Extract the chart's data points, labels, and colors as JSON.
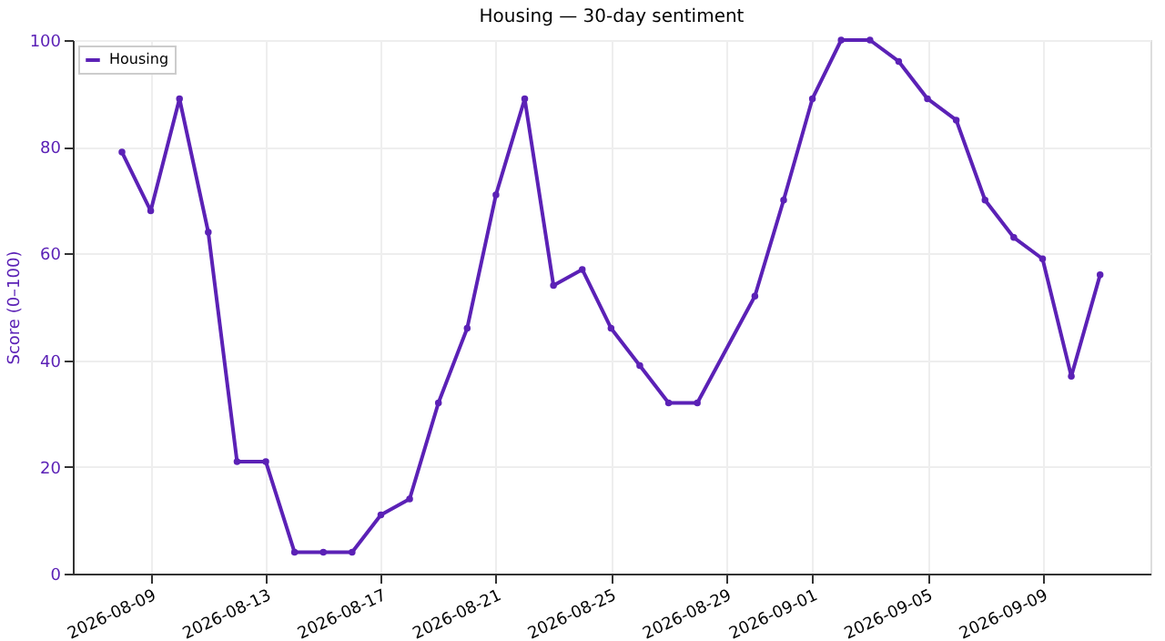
{
  "chart_data": {
    "type": "line",
    "title": "Housing — 30-day sentiment",
    "ylabel": "Score (0–100)",
    "x": [
      "2026-08-08",
      "2026-08-09",
      "2026-08-10",
      "2026-08-11",
      "2026-08-12",
      "2026-08-13",
      "2026-08-14",
      "2026-08-15",
      "2026-08-16",
      "2026-08-17",
      "2026-08-18",
      "2026-08-19",
      "2026-08-20",
      "2026-08-21",
      "2026-08-22",
      "2026-08-23",
      "2026-08-24",
      "2026-08-25",
      "2026-08-26",
      "2026-08-27",
      "2026-08-28",
      "2026-08-30",
      "2026-08-31",
      "2026-09-01",
      "2026-09-02",
      "2026-09-03",
      "2026-09-04",
      "2026-09-05",
      "2026-09-06",
      "2026-09-07",
      "2026-09-08",
      "2026-09-09",
      "2026-09-10",
      "2026-09-11"
    ],
    "series": [
      {
        "name": "Housing",
        "color": "#5b21b6",
        "values": [
          79,
          68,
          89,
          64,
          21,
          21,
          4,
          4,
          4,
          11,
          14,
          32,
          46,
          71,
          89,
          54,
          57,
          46,
          39,
          32,
          32,
          52,
          70,
          89,
          100,
          100,
          96,
          89,
          85,
          70,
          63,
          59,
          37,
          56
        ]
      }
    ],
    "xlim": [
      "2026-08-06T07:00",
      "2026-09-12T18:00"
    ],
    "xticks": [
      "2026-08-09",
      "2026-08-13",
      "2026-08-17",
      "2026-08-21",
      "2026-08-25",
      "2026-08-29",
      "2026-09-01",
      "2026-09-05",
      "2026-09-09"
    ],
    "ylim": [
      0,
      100
    ],
    "yticks": [
      0,
      20,
      40,
      60,
      80,
      100
    ],
    "grid": true,
    "legend": "top left",
    "marker": "circle",
    "line_style": "solid"
  }
}
